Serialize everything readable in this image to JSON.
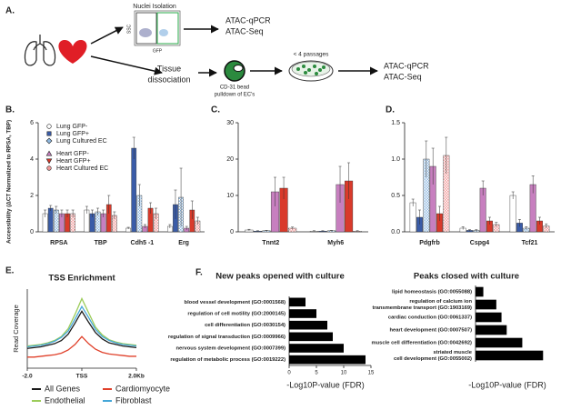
{
  "panels": [
    "A.",
    "B.",
    "C.",
    "D.",
    "E.",
    "F."
  ],
  "diagram": {
    "nuclei": "Nuclei Isolation",
    "ssc": "SSC",
    "gfp": "GFP",
    "out1": [
      "ATAC-qPCR",
      "ATAC-Seq"
    ],
    "tissue": [
      "Tissue",
      "dissociation"
    ],
    "pulldown": [
      "CD-31 bead",
      "pulldown of EC's"
    ],
    "passages": "< 4 passages",
    "out2": [
      "ATAC-qPCR",
      "ATAC-Seq"
    ]
  },
  "chart_data": [
    {
      "type": "bar",
      "ylabel": "Accessibility (ΔCT Normalized to RPSA, TBP)",
      "categories": [
        "RPSA",
        "TBP",
        "Cdh5 -1",
        "Erg"
      ],
      "ylim": [
        0,
        6
      ],
      "yticks": [
        0,
        2,
        4,
        6
      ],
      "legend": "upper left",
      "series": [
        {
          "name": "Lung GFP-",
          "color": "#ffffff",
          "marker": "circle",
          "values": [
            1.0,
            1.2,
            0.2,
            0.3
          ],
          "errors": [
            0.2,
            0.2,
            0.05,
            0.1
          ]
        },
        {
          "name": "Lung GFP+",
          "color": "#3a5ca8",
          "marker": "square",
          "values": [
            1.3,
            1.0,
            4.6,
            1.5
          ],
          "errors": [
            0.15,
            0.2,
            0.6,
            0.8
          ]
        },
        {
          "name": "Lung Cultured EC",
          "color": "#8fb8e0",
          "marker": "diamond",
          "hatch": true,
          "values": [
            1.2,
            1.1,
            2.0,
            1.9
          ],
          "errors": [
            0.2,
            0.2,
            0.6,
            1.6
          ]
        },
        {
          "name": "Heart GFP-",
          "color": "#c77fbf",
          "marker": "triangle",
          "values": [
            1.0,
            1.0,
            0.3,
            0.2
          ],
          "errors": [
            0.2,
            0.2,
            0.1,
            0.1
          ]
        },
        {
          "name": "Heart GFP+",
          "color": "#d93a2b",
          "marker": "triangle-down",
          "values": [
            1.0,
            1.5,
            1.3,
            1.2
          ],
          "errors": [
            0.2,
            0.5,
            0.3,
            0.5
          ]
        },
        {
          "name": "Heart Cultured EC",
          "color": "#f19a9a",
          "marker": "circle",
          "hatch": true,
          "values": [
            1.0,
            0.9,
            1.0,
            0.6
          ],
          "errors": [
            0.2,
            0.2,
            0.3,
            0.2
          ]
        }
      ]
    },
    {
      "type": "bar",
      "categories": [
        "Tnnt2",
        "Myh6"
      ],
      "ylim": [
        0,
        30
      ],
      "yticks": [
        0,
        10,
        20,
        30
      ],
      "series": [
        {
          "color": "#ffffff",
          "values": [
            0.5,
            0.2
          ],
          "errors": [
            0.2,
            0.1
          ]
        },
        {
          "color": "#3a5ca8",
          "values": [
            0.2,
            0.2
          ],
          "errors": [
            0.1,
            0.1
          ]
        },
        {
          "color": "#8fb8e0",
          "hatch": true,
          "values": [
            0.3,
            0.3
          ],
          "errors": [
            0.1,
            0.1
          ]
        },
        {
          "color": "#c77fbf",
          "values": [
            11,
            13
          ],
          "errors": [
            4,
            5
          ]
        },
        {
          "color": "#d93a2b",
          "values": [
            12,
            14
          ],
          "errors": [
            3,
            5
          ]
        },
        {
          "color": "#f19a9a",
          "hatch": true,
          "values": [
            1.0,
            0.2
          ],
          "errors": [
            0.3,
            0.1
          ]
        }
      ]
    },
    {
      "type": "bar",
      "categories": [
        "Pdgfrb",
        "Cspg4",
        "Tcf21"
      ],
      "ylim": [
        0,
        1.5
      ],
      "yticks": [
        {
          "value": 0,
          "label": "0.0"
        },
        0.5,
        {
          "value": 1,
          "label": "1.0"
        },
        1.5
      ],
      "series": [
        {
          "color": "#ffffff",
          "values": [
            0.4,
            0.05,
            0.5
          ],
          "errors": [
            0.05,
            0.02,
            0.05
          ]
        },
        {
          "color": "#3a5ca8",
          "values": [
            0.2,
            0.02,
            0.12
          ],
          "errors": [
            0.1,
            0.01,
            0.05
          ]
        },
        {
          "color": "#8fb8e0",
          "hatch": true,
          "values": [
            1.0,
            0.02,
            0.05
          ],
          "errors": [
            0.25,
            0.01,
            0.02
          ]
        },
        {
          "color": "#c77fbf",
          "values": [
            0.9,
            0.6,
            0.65
          ],
          "errors": [
            0.25,
            0.1,
            0.12
          ]
        },
        {
          "color": "#d93a2b",
          "values": [
            0.25,
            0.15,
            0.15
          ],
          "errors": [
            0.1,
            0.05,
            0.05
          ]
        },
        {
          "color": "#f19a9a",
          "hatch": true,
          "values": [
            1.05,
            0.1,
            0.08
          ],
          "errors": [
            0.25,
            0.03,
            0.03
          ]
        }
      ]
    },
    {
      "type": "line",
      "title": "TSS Enrichment",
      "ylabel": "Read Coverage",
      "xlim": [
        -2,
        2
      ],
      "ylim": [
        0,
        1
      ],
      "xticks": [
        {
          "value": -2,
          "label": "-2.0"
        },
        {
          "value": 0,
          "label": "TSS"
        },
        {
          "value": 2,
          "label": "2.0Kb"
        }
      ],
      "x": [
        -2,
        -1.75,
        -1.5,
        -1.25,
        -1,
        -0.75,
        -0.5,
        -0.25,
        0,
        0.25,
        0.5,
        0.75,
        1,
        1.25,
        1.5,
        1.75,
        2
      ],
      "series": [
        {
          "name": "All Genes",
          "color": "#1a1a1a",
          "values": [
            0.25,
            0.26,
            0.27,
            0.29,
            0.31,
            0.35,
            0.43,
            0.57,
            0.72,
            0.58,
            0.45,
            0.37,
            0.32,
            0.3,
            0.28,
            0.27,
            0.26
          ]
        },
        {
          "name": "Cardiomyocyte",
          "color": "#e0402a",
          "values": [
            0.14,
            0.14,
            0.15,
            0.16,
            0.17,
            0.19,
            0.23,
            0.3,
            0.4,
            0.31,
            0.24,
            0.2,
            0.18,
            0.17,
            0.16,
            0.15,
            0.15
          ]
        },
        {
          "name": "Endothelial",
          "color": "#9ccc5a",
          "values": [
            0.28,
            0.29,
            0.3,
            0.32,
            0.35,
            0.4,
            0.5,
            0.68,
            0.88,
            0.7,
            0.52,
            0.42,
            0.36,
            0.33,
            0.31,
            0.3,
            0.29
          ]
        },
        {
          "name": "Fibroblast",
          "color": "#45a7d8",
          "values": [
            0.27,
            0.28,
            0.29,
            0.31,
            0.34,
            0.39,
            0.47,
            0.62,
            0.78,
            0.64,
            0.49,
            0.4,
            0.35,
            0.32,
            0.3,
            0.29,
            0.28
          ]
        }
      ]
    },
    {
      "type": "barh",
      "title": "New peaks opened with culture",
      "xlabel": "-Log10P-value (FDR)",
      "color": "#000000",
      "categories": [
        [
          "blood vessel development (GO:0001568)"
        ],
        [
          "regulation of cell motility (GO:2000145)"
        ],
        [
          "cell differentiation (GO:0030154)"
        ],
        [
          "regulation of signal transduction (GO:0009966)"
        ],
        [
          "nervous system development (GO:0007399)"
        ],
        [
          "regulation of metabolic process (GO:0019222)"
        ]
      ],
      "values": [
        3,
        5,
        7,
        8,
        10,
        14
      ],
      "xlim": [
        0,
        15
      ],
      "xticks": [
        0,
        5,
        10,
        15
      ]
    },
    {
      "type": "barh",
      "title": "Peaks closed with culture",
      "xlabel": "-Log10P-value (FDR)",
      "color": "#000000",
      "categories": [
        [
          "lipid homeostasis (GO:0055088)"
        ],
        [
          "regulation of calcium ion",
          "transmembrane transport (GO:1903169)"
        ],
        [
          "cardiac conduction (GO:0061337)"
        ],
        [
          "heart development (GO:0007507)"
        ],
        [
          "muscle cell differentiation (GO:0042692)"
        ],
        [
          "striated muscle",
          "cell development (GO:0055002)"
        ]
      ],
      "values": [
        1.5,
        4,
        5,
        6,
        9,
        13
      ],
      "xlim": [
        0,
        14
      ]
    }
  ]
}
